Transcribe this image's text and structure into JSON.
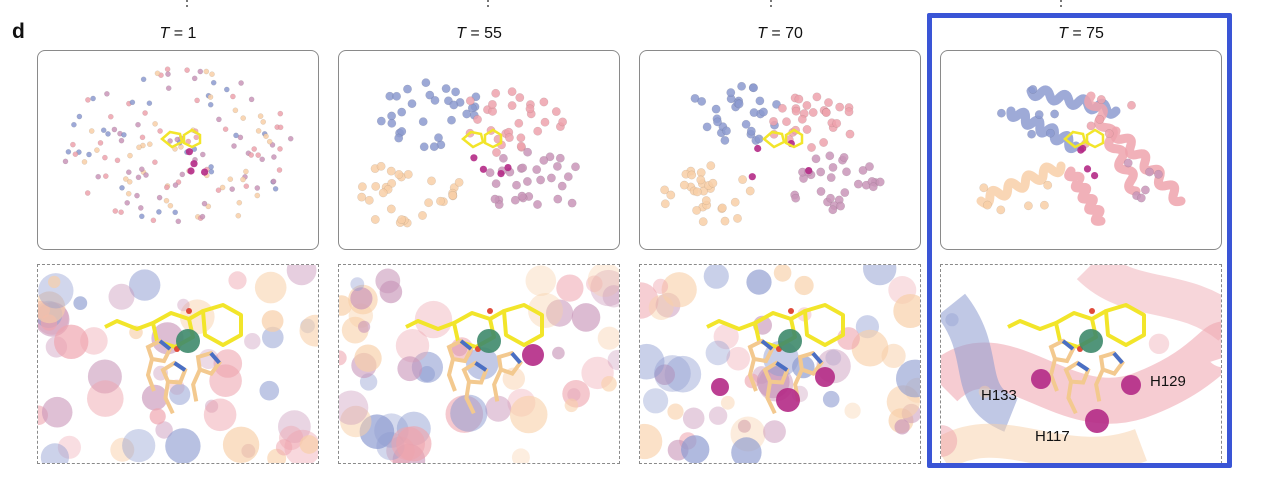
{
  "panel_letter": "d",
  "colors": {
    "highlight": "#3a55d6",
    "blue": "#8d9bd0",
    "pink": "#eea3ad",
    "peach": "#f8cfa8",
    "mauve": "#c996b9",
    "magenta": "#b42a86",
    "teal": "#3e8a6c",
    "ligand": "#f2e52a"
  },
  "panels": [
    {
      "label_var": "T",
      "label_eq": " = 1"
    },
    {
      "label_var": "T",
      "label_eq": " = 55"
    },
    {
      "label_var": "T",
      "label_eq": " = 70"
    },
    {
      "label_var": "T",
      "label_eq": " = 75"
    }
  ],
  "residue_labels": {
    "h133": "H133",
    "h129": "H129",
    "h117": "H117"
  }
}
